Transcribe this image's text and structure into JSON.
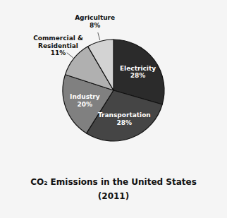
{
  "chart_data": {
    "type": "pie",
    "title": "CO₂ Emissions in the United States\n(2011)",
    "categories": [
      "Electricity",
      "Transportation",
      "Industry",
      "Commercial &\nResidential",
      "Agriculture"
    ],
    "values": [
      28,
      28,
      20,
      11,
      8
    ],
    "value_labels": [
      "28%",
      "28%",
      "20%",
      "11%",
      "8%"
    ],
    "colors": [
      "#2b2b2b",
      "#454545",
      "#808080",
      "#b0b0b0",
      "#d3d3d3"
    ],
    "data_labels": true
  }
}
